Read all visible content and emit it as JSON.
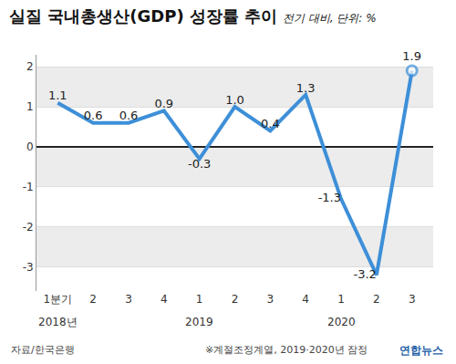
{
  "chart_data": {
    "type": "line",
    "title": "실질 국내총생산(GDP) 성장률 추이",
    "subtitle": "전기 대비, 단위: %",
    "categories": [
      "1분기",
      "2",
      "3",
      "4",
      "1",
      "2",
      "3",
      "4",
      "1",
      "2",
      "3"
    ],
    "values": [
      1.1,
      0.6,
      0.6,
      0.9,
      -0.3,
      1.0,
      0.4,
      1.3,
      -1.3,
      -3.2,
      1.9
    ],
    "value_labels": [
      "1.1",
      "0.6",
      "0.6",
      "0.9",
      "-0.3",
      "1.0",
      "0.4",
      "1.3",
      "-1.3",
      "-3.2",
      "1.9"
    ],
    "color": "#3d8fd8",
    "ylim": [
      -3.6,
      2.3
    ],
    "yticks": [
      -3,
      -2,
      -1,
      0,
      1,
      2
    ],
    "grid": true,
    "data_labels": true,
    "annotations": [
      {
        "text": "2018년",
        "category": 0
      },
      {
        "text": "2019",
        "category": 4
      },
      {
        "text": "2020",
        "category": 8
      }
    ],
    "source": "자료/한국은행",
    "note": "※계절조정계열, 2019·2020년 잠정",
    "credit": "연합뉴스"
  }
}
